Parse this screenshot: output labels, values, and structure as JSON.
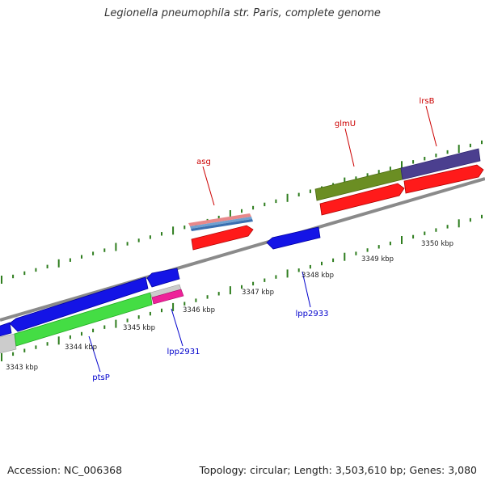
{
  "title": "Legionella pneumophila str. Paris, complete genome",
  "footer": {
    "accession": "Accession: NC_006368",
    "summary": "Topology: circular; Length: 3,503,610 bp; Genes: 3,080"
  },
  "colors": {
    "backbone": "#888888",
    "ticks": "#2e7d1e",
    "gene_label_forward": "#cc0000",
    "gene_label_reverse": "#0000cc"
  },
  "scale_labels": [
    "3343 kbp",
    "3344 kbp",
    "3345 kbp",
    "3346 kbp",
    "3347 kbp",
    "3348 kbp",
    "3349 kbp",
    "3350 kbp"
  ],
  "gene_labels": {
    "forward": [
      "asg",
      "glmU",
      "lrsB"
    ],
    "reverse": [
      "ptsP",
      "lpp2931",
      "lpp2933"
    ]
  }
}
